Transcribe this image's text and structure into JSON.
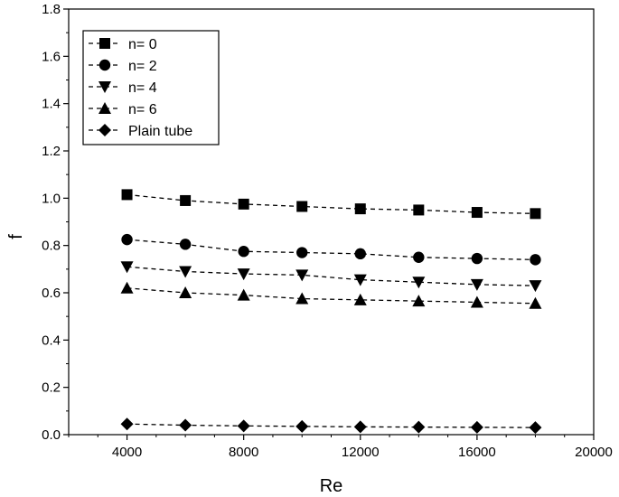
{
  "chart_data": {
    "type": "line",
    "title": "",
    "xlabel": "Re",
    "ylabel": "f",
    "xlim": [
      2000,
      20000
    ],
    "ylim": [
      0.0,
      1.8
    ],
    "xticks": [
      4000,
      8000,
      12000,
      16000,
      20000
    ],
    "xtick_labels": [
      "4000",
      "8000",
      "12000",
      "16000",
      "20000"
    ],
    "yticks": [
      0.0,
      0.2,
      0.4,
      0.6,
      0.8,
      1.0,
      1.2,
      1.4,
      1.6,
      1.8
    ],
    "ytick_labels": [
      "0.0",
      "0.2",
      "0.4",
      "0.6",
      "0.8",
      "1.0",
      "1.2",
      "1.4",
      "1.6",
      "1.8"
    ],
    "grid": false,
    "legend_position": "top-left",
    "line_style": "dashed",
    "x": [
      4000,
      6000,
      8000,
      10000,
      12000,
      14000,
      16000,
      18000
    ],
    "series": [
      {
        "name": "n= 0",
        "marker": "square",
        "color": "#000000",
        "values": [
          1.015,
          0.99,
          0.975,
          0.965,
          0.955,
          0.95,
          0.94,
          0.935
        ]
      },
      {
        "name": "n= 2",
        "marker": "circle",
        "color": "#000000",
        "values": [
          0.825,
          0.805,
          0.775,
          0.77,
          0.765,
          0.75,
          0.745,
          0.74
        ]
      },
      {
        "name": "n= 4",
        "marker": "triangle-down",
        "color": "#000000",
        "values": [
          0.71,
          0.69,
          0.68,
          0.675,
          0.655,
          0.645,
          0.635,
          0.63
        ]
      },
      {
        "name": "n= 6",
        "marker": "triangle-up",
        "color": "#000000",
        "values": [
          0.62,
          0.6,
          0.59,
          0.575,
          0.57,
          0.565,
          0.56,
          0.555
        ]
      },
      {
        "name": "Plain tube",
        "marker": "diamond",
        "color": "#000000",
        "values": [
          0.045,
          0.04,
          0.037,
          0.035,
          0.033,
          0.032,
          0.031,
          0.03
        ]
      }
    ]
  }
}
